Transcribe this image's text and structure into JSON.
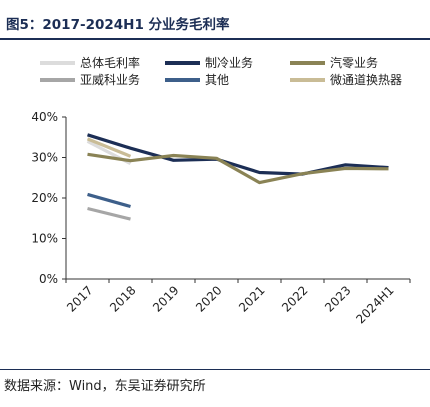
{
  "header": {
    "title": "图5：2017-2024H1 分业务毛利率"
  },
  "footer": {
    "source": "数据来源：Wind，东吴证券研究所"
  },
  "chart_data": {
    "type": "line",
    "title": "图5：2017-2024H1 分业务毛利率",
    "xlabel": "",
    "ylabel": "",
    "categories": [
      "2017",
      "2018",
      "2019",
      "2020",
      "2021",
      "2022",
      "2023",
      "2024H1"
    ],
    "ylim": [
      0,
      40
    ],
    "yticks": [
      0,
      10,
      20,
      30,
      40
    ],
    "ytick_labels": [
      "0%",
      "10%",
      "20%",
      "30%",
      "40%"
    ],
    "grid": false,
    "legend_position": "top",
    "series": [
      {
        "name": "总体毛利率",
        "color": "#dcdcdc",
        "values": [
          34.0,
          28.5,
          null,
          null,
          null,
          null,
          null,
          null
        ]
      },
      {
        "name": "制冷业务",
        "color": "#1c2e55",
        "values": [
          35.6,
          32.3,
          29.3,
          29.6,
          26.3,
          25.9,
          28.2,
          27.5
        ]
      },
      {
        "name": "汽零业务",
        "color": "#8a8355",
        "values": [
          30.8,
          29.2,
          30.5,
          29.8,
          23.8,
          26.0,
          27.3,
          27.2
        ]
      },
      {
        "name": "亚威科业务",
        "color": "#a6a6a6",
        "values": [
          17.4,
          14.8,
          null,
          null,
          null,
          null,
          null,
          null
        ]
      },
      {
        "name": "其他",
        "color": "#3d5f8a",
        "values": [
          20.9,
          17.9,
          null,
          null,
          null,
          null,
          null,
          null
        ]
      },
      {
        "name": "微通道换热器",
        "color": "#c9bc96",
        "values": [
          34.6,
          30.3,
          null,
          null,
          null,
          null,
          null,
          null
        ]
      }
    ]
  }
}
